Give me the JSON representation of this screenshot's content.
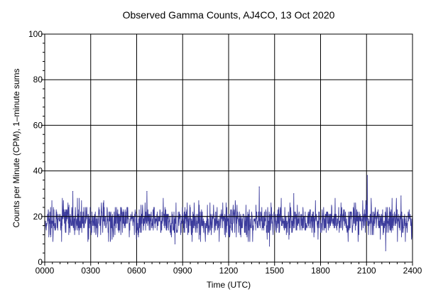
{
  "chart_data": {
    "type": "line",
    "title": "Observed Gamma Counts, AJ4CO, 13 Oct 2020",
    "xlabel": "Time (UTC)",
    "ylabel": "Counts per Minute (CPM), 1–minute sums",
    "xlim": [
      0,
      1440
    ],
    "ylim": [
      0,
      100
    ],
    "x_ticks": [
      0,
      180,
      360,
      540,
      720,
      900,
      1080,
      1260,
      1440
    ],
    "x_tick_labels": [
      "0000",
      "0300",
      "0600",
      "0900",
      "1200",
      "1500",
      "1800",
      "2100",
      "2400"
    ],
    "y_ticks": [
      0,
      20,
      40,
      60,
      80,
      100
    ],
    "y_tick_labels": [
      "0",
      "20",
      "40",
      "60",
      "80",
      "100"
    ],
    "grid": true,
    "reference_line_y": 20,
    "series": [
      {
        "color": "#3c3c9c",
        "sampling": "1-minute sums",
        "summary": {
          "mean": 18,
          "min": 5,
          "max": 38
        },
        "notable_peaks": [
          {
            "x": 1263,
            "y": 38
          },
          {
            "x": 840,
            "y": 33
          },
          {
            "x": 110,
            "y": 31
          },
          {
            "x": 400,
            "y": 31
          },
          {
            "x": 975,
            "y": 30
          },
          {
            "x": 1395,
            "y": 29
          }
        ],
        "notable_dips": [
          {
            "x": 1335,
            "y": 5
          },
          {
            "x": 880,
            "y": 7
          },
          {
            "x": 510,
            "y": 8
          }
        ]
      }
    ]
  }
}
